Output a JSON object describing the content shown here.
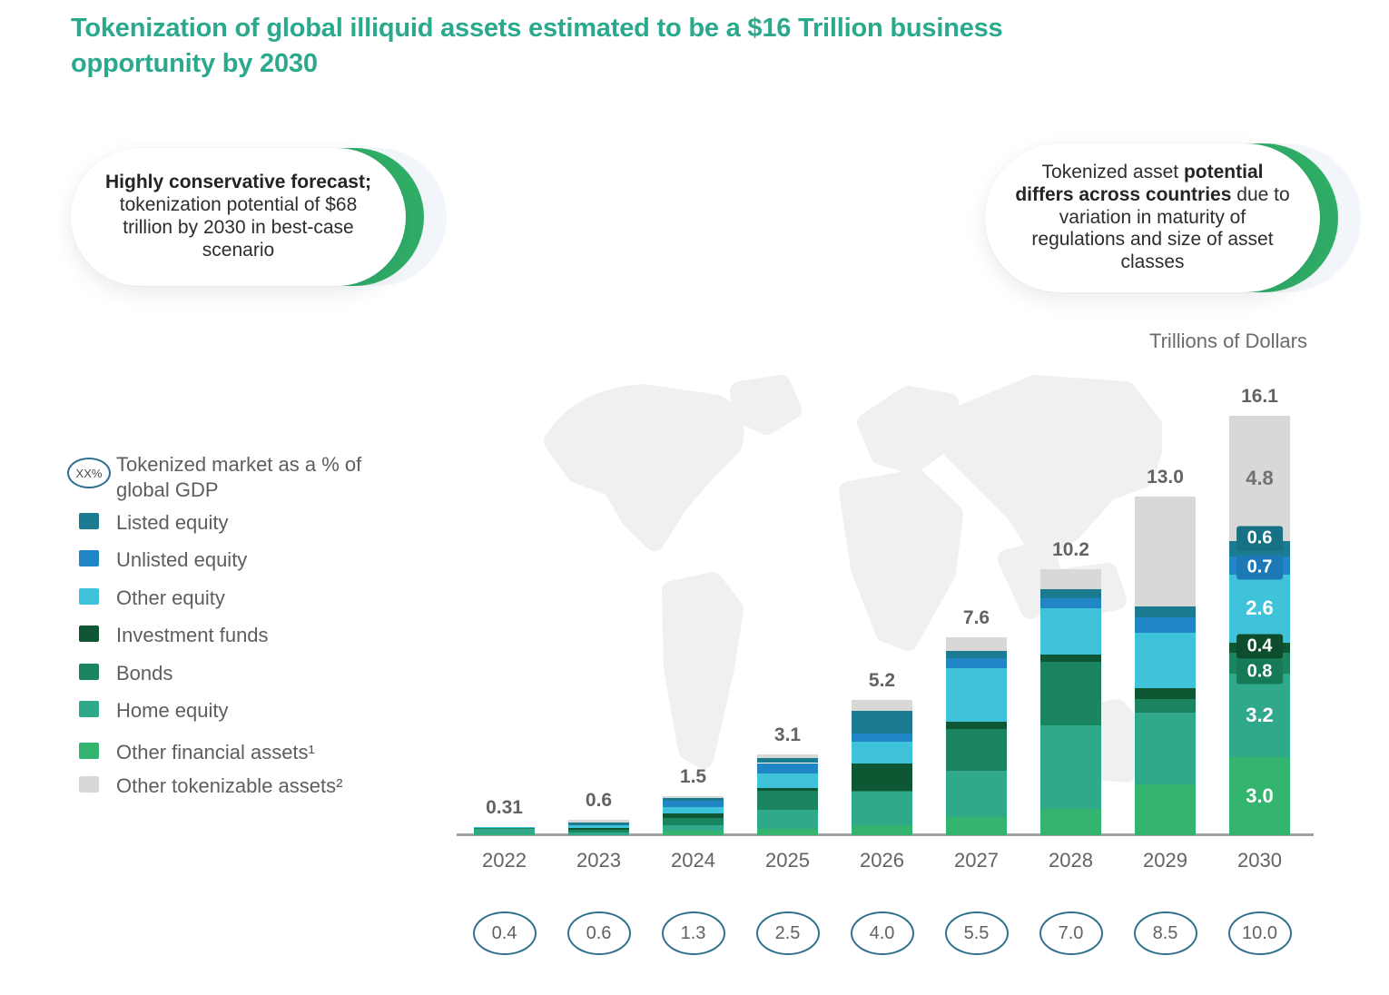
{
  "title": "Tokenization of global illiquid assets estimated to be a $16 Trillion business opportunity by 2030",
  "callouts": {
    "left": {
      "bold": "Highly conservative forecast;",
      "rest": "tokenization potential of $68 trillion by 2030 in best-case scenario"
    },
    "right": {
      "pre": "Tokenized asset",
      "bold": "potential differs across countries",
      "rest": "due to variation in maturity of regulations and size of asset classes"
    }
  },
  "axis_note": "Trillions of Dollars",
  "legend": {
    "gdp_marker": {
      "symbol": "XX%",
      "label": "Tokenized market as a % of global GDP",
      "outline_color": "#2e7090"
    },
    "items": [
      {
        "label": "Listed equity",
        "color": "#1a7b91"
      },
      {
        "label": "Unlisted equity",
        "color": "#2186c5"
      },
      {
        "label": "Other equity",
        "color": "#3fc3da"
      },
      {
        "label": "Investment funds",
        "color": "#0f5632"
      },
      {
        "label": "Bonds",
        "color": "#1a8560"
      },
      {
        "label": "Home equity",
        "color": "#30a98b"
      },
      {
        "label": "Other financial assets¹",
        "color": "#33b56f"
      },
      {
        "label": "Other tokenizable assets²",
        "color": "#d8d8d7"
      }
    ]
  },
  "chart_data": {
    "type": "bar",
    "stacked": true,
    "unit": "Trillions of Dollars",
    "categories": [
      "2022",
      "2023",
      "2024",
      "2025",
      "2026",
      "2027",
      "2028",
      "2029",
      "2030"
    ],
    "totals": [
      0.31,
      0.6,
      1.5,
      3.1,
      5.2,
      7.6,
      10.2,
      13.0,
      16.1
    ],
    "total_labels": [
      "0.31",
      "0.6",
      "1.5",
      "3.1",
      "5.2",
      "7.6",
      "10.2",
      "13.0",
      "16.1"
    ],
    "series": [
      {
        "key": "other-financial-assets",
        "name": "Other financial assets¹",
        "color": "#33b56f",
        "values": [
          0.02,
          0,
          0.18,
          0.24,
          0.4,
          0.68,
          1.02,
          1.96,
          3.0
        ],
        "label_2030": {
          "text": "3.0",
          "style": "on-bar"
        }
      },
      {
        "key": "home-equity",
        "name": "Home equity",
        "color": "#30a98b",
        "values": [
          0.25,
          0.12,
          0.2,
          0.72,
          1.27,
          1.79,
          3.2,
          2.75,
          3.2
        ],
        "label_2030": {
          "text": "3.2",
          "style": "on-bar"
        }
      },
      {
        "key": "bonds",
        "name": "Bonds",
        "color": "#1a8560",
        "chip_color": "#177a57",
        "values": [
          0.02,
          0.1,
          0.27,
          0.74,
          0.05,
          1.61,
          2.44,
          0.53,
          0.8
        ],
        "label_2030": {
          "text": "0.8",
          "style": "chip",
          "dy": 9
        }
      },
      {
        "key": "investment-funds",
        "name": "Investment funds",
        "color": "#0f5632",
        "chip_color": "#0d4c2c",
        "values": [
          0,
          0.06,
          0.18,
          0.1,
          1.02,
          0.26,
          0.26,
          0.41,
          0.4
        ],
        "label_2030": {
          "text": "0.4",
          "style": "chip",
          "dy": -1
        }
      },
      {
        "key": "other-equity",
        "name": "Other equity",
        "color": "#3fc3da",
        "values": [
          0.02,
          0.12,
          0.24,
          0.56,
          0.86,
          2.07,
          1.8,
          2.13,
          2.6
        ],
        "label_2030": {
          "text": "2.6",
          "style": "on-bar"
        }
      },
      {
        "key": "unlisted-equity",
        "name": "Unlisted equity",
        "color": "#2186c5",
        "chip_color": "#1d79b5",
        "values": [
          0,
          0,
          0.26,
          0.41,
          0.3,
          0.38,
          0.36,
          0.59,
          0.7
        ],
        "label_2030": {
          "text": "0.7",
          "style": "chip",
          "dy": 2
        }
      },
      {
        "key": "listed-equity",
        "name": "Listed equity",
        "color": "#1a7b91",
        "chip_color": "#177084",
        "values": [
          0,
          0.1,
          0.09,
          0.19,
          0.88,
          0.3,
          0.36,
          0.41,
          0.6
        ],
        "label_2030": {
          "text": "0.6",
          "style": "chip",
          "dy": -11
        }
      },
      {
        "key": "other-tokenizable-assets",
        "name": "Other tokenizable assets²",
        "color": "#d8d8d7",
        "values": [
          0,
          0.1,
          0.08,
          0.14,
          0.42,
          0.51,
          0.76,
          4.22,
          4.8
        ],
        "label_2030": {
          "text": "4.8",
          "style": "on-gray"
        }
      }
    ],
    "gdp_pct_labels": [
      "0.4",
      "0.6",
      "1.3",
      "2.5",
      "4.0",
      "5.5",
      "7.0",
      "8.5",
      "10.0"
    ],
    "legend_position": "left",
    "grid": false
  }
}
